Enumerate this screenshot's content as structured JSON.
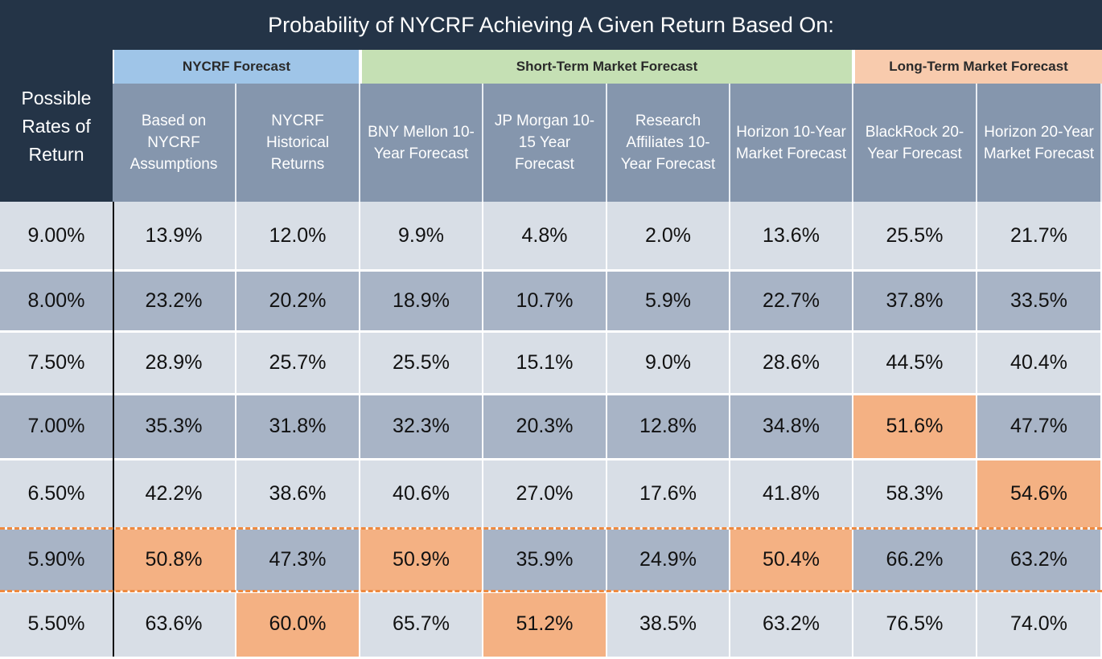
{
  "chart_data": {
    "type": "table",
    "title": "Probability of NYCRF Achieving A Given Return Based On:",
    "row_header_label": "Possible Rates of Return",
    "groups": [
      {
        "name": "NYCRF Forecast",
        "span": 2,
        "color": "#9fc5e8"
      },
      {
        "name": "Short-Term Market Forecast",
        "span": 4,
        "color": "#c5e0b4"
      },
      {
        "name": "Long-Term Market Forecast",
        "span": 2,
        "color": "#f8cbad"
      }
    ],
    "columns": [
      "Based on NYCRF Assumptions",
      "NYCRF Historical Returns",
      "BNY Mellon 10-Year Forecast",
      "JP Morgan 10-15 Year Forecast",
      "Research Affiliates 10-Year Forecast",
      "Horizon 10-Year Market Forecast",
      "BlackRock 20-Year Forecast",
      "Horizon 20-Year Market Forecast"
    ],
    "rows": [
      {
        "rate": "9.00%",
        "values": [
          "13.9%",
          "12.0%",
          "9.9%",
          "4.8%",
          "2.0%",
          "13.6%",
          "25.5%",
          "21.7%"
        ],
        "highlight": []
      },
      {
        "rate": "8.00%",
        "values": [
          "23.2%",
          "20.2%",
          "18.9%",
          "10.7%",
          "5.9%",
          "22.7%",
          "37.8%",
          "33.5%"
        ],
        "highlight": []
      },
      {
        "rate": "7.50%",
        "values": [
          "28.9%",
          "25.7%",
          "25.5%",
          "15.1%",
          "9.0%",
          "28.6%",
          "44.5%",
          "40.4%"
        ],
        "highlight": []
      },
      {
        "rate": "7.00%",
        "values": [
          "35.3%",
          "31.8%",
          "32.3%",
          "20.3%",
          "12.8%",
          "34.8%",
          "51.6%",
          "47.7%"
        ],
        "highlight": [
          6
        ]
      },
      {
        "rate": "6.50%",
        "values": [
          "42.2%",
          "38.6%",
          "40.6%",
          "27.0%",
          "17.6%",
          "41.8%",
          "58.3%",
          "54.6%"
        ],
        "highlight": [
          7
        ]
      },
      {
        "rate": "5.90%",
        "values": [
          "50.8%",
          "47.3%",
          "50.9%",
          "35.9%",
          "24.9%",
          "50.4%",
          "66.2%",
          "63.2%"
        ],
        "highlight": [
          0,
          2,
          5
        ]
      },
      {
        "rate": "5.50%",
        "values": [
          "63.6%",
          "60.0%",
          "65.7%",
          "51.2%",
          "38.5%",
          "63.2%",
          "76.5%",
          "74.0%"
        ],
        "highlight": [
          1,
          3
        ]
      }
    ],
    "dashed_border_row": "5.90%",
    "colors": {
      "header_dark": "#243447",
      "column_header": "#8596ad",
      "row_light": "#d8dee6",
      "row_dark": "#a8b4c6",
      "highlight": "#f4b183",
      "dashed_line": "#ee8a40"
    }
  }
}
